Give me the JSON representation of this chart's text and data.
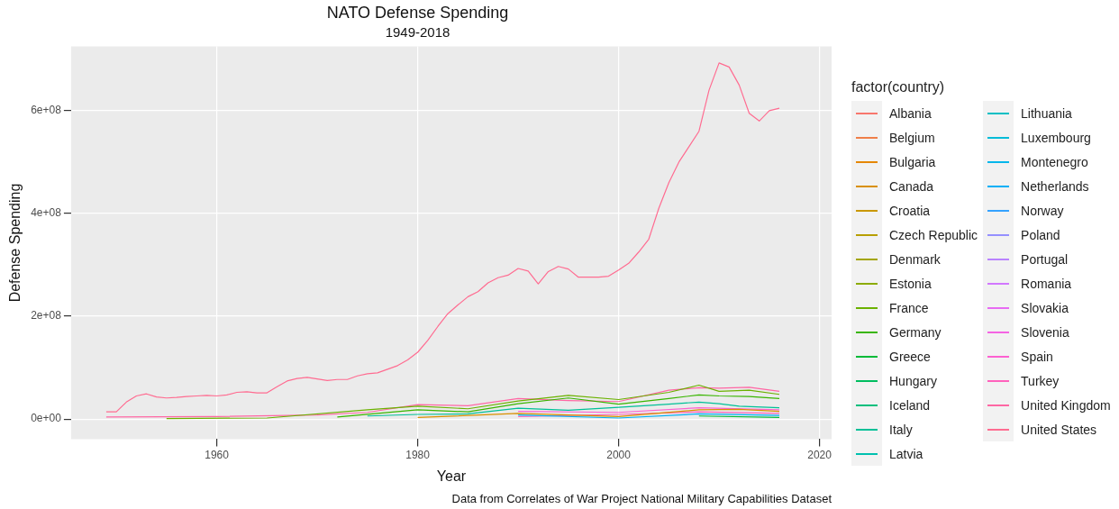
{
  "chart_data": {
    "type": "line",
    "title": "NATO Defense Spending",
    "subtitle": "1949-2018",
    "xlabel": "Year",
    "ylabel": "Defense Spending",
    "legend_title": "factor(country)",
    "legend": "right",
    "grid": true,
    "marker": "none",
    "line_style": "solid",
    "xlim": [
      1945.5,
      2021.2
    ],
    "xticks": [
      1960,
      1980,
      2000,
      2020
    ],
    "ylim": [
      -39000000,
      725000000
    ],
    "yticks": [
      {
        "value": 0,
        "label": "0e+00"
      },
      {
        "value": 200000000,
        "label": "2e+08"
      },
      {
        "value": 400000000,
        "label": "4e+08"
      },
      {
        "value": 600000000,
        "label": "6e+08"
      }
    ],
    "annotations": [
      "Data from Correlates of War Project National Military Capabilities Dataset"
    ],
    "series": [
      {
        "name": "Albania",
        "color": "#f8766d"
      },
      {
        "name": "Belgium",
        "color": "#ef7f49"
      },
      {
        "name": "Bulgaria",
        "color": "#e58700"
      },
      {
        "name": "Canada",
        "color": "#d89000",
        "x": [
          1980,
          1990,
          2000,
          2008,
          2012,
          2016
        ],
        "values": [
          3000000,
          11000000,
          5000000,
          18000000,
          19000000,
          15000000
        ]
      },
      {
        "name": "Croatia",
        "color": "#c99800"
      },
      {
        "name": "Czech Republic",
        "color": "#b79f00"
      },
      {
        "name": "Denmark",
        "color": "#a3a500"
      },
      {
        "name": "Estonia",
        "color": "#8cab00"
      },
      {
        "name": "France",
        "color": "#6bb100",
        "x": [
          1955,
          1965,
          1975,
          1980,
          1985,
          1990,
          1995,
          2000,
          2005,
          2008,
          2010,
          2013,
          2016
        ],
        "values": [
          1000000,
          2000000,
          18000000,
          25000000,
          20000000,
          35000000,
          46000000,
          38000000,
          52000000,
          66000000,
          54000000,
          56000000,
          48000000
        ]
      },
      {
        "name": "Germany",
        "color": "#39b600",
        "x": [
          1972,
          1980,
          1985,
          1990,
          1995,
          2000,
          2005,
          2008,
          2010,
          2013,
          2016
        ],
        "values": [
          4000000,
          18000000,
          14000000,
          30000000,
          41000000,
          29000000,
          40000000,
          47000000,
          45000000,
          44000000,
          40000000
        ]
      },
      {
        "name": "Greece",
        "color": "#00ba38",
        "x": [
          2008,
          2016
        ],
        "values": [
          6000000,
          3000000
        ]
      },
      {
        "name": "Hungary",
        "color": "#00bd5f"
      },
      {
        "name": "Iceland",
        "color": "#00bf7d"
      },
      {
        "name": "Italy",
        "color": "#00c097",
        "x": [
          1975,
          1980,
          1985,
          1990,
          1995,
          2000,
          2005,
          2008,
          2010,
          2012,
          2016
        ],
        "values": [
          6000000,
          9000000,
          10000000,
          21000000,
          17000000,
          23000000,
          29000000,
          33000000,
          30000000,
          25000000,
          22000000
        ]
      },
      {
        "name": "Latvia",
        "color": "#00c0af"
      },
      {
        "name": "Lithuania",
        "color": "#00bfc4"
      },
      {
        "name": "Luxembourg",
        "color": "#00bcd8"
      },
      {
        "name": "Montenegro",
        "color": "#00b6eb"
      },
      {
        "name": "Netherlands",
        "color": "#00b0f6",
        "x": [
          1990,
          2000,
          2008,
          2016
        ],
        "values": [
          8000000,
          2000000,
          10000000,
          7000000
        ]
      },
      {
        "name": "Norway",
        "color": "#35a2ff"
      },
      {
        "name": "Poland",
        "color": "#9590ff"
      },
      {
        "name": "Portugal",
        "color": "#b983ff"
      },
      {
        "name": "Romania",
        "color": "#d277ff"
      },
      {
        "name": "Slovakia",
        "color": "#e76bf3"
      },
      {
        "name": "Slovenia",
        "color": "#f564e3"
      },
      {
        "name": "Spain",
        "color": "#fd61d1",
        "x": [
          1990,
          2000,
          2008,
          2016
        ],
        "values": [
          15000000,
          13000000,
          22000000,
          18000000
        ]
      },
      {
        "name": "Turkey",
        "color": "#ff62bc",
        "x": [
          1990,
          2000,
          2008,
          2016
        ],
        "values": [
          5000000,
          9000000,
          14000000,
          11000000
        ]
      },
      {
        "name": "United Kingdom",
        "color": "#ff67a4",
        "x": [
          1949,
          1960,
          1970,
          1975,
          1980,
          1985,
          1990,
          1995,
          2000,
          2005,
          2008,
          2010,
          2013,
          2016
        ],
        "values": [
          4000000,
          5000000,
          8000000,
          13000000,
          28000000,
          26000000,
          40000000,
          36000000,
          34000000,
          56000000,
          61000000,
          60000000,
          62000000,
          54000000
        ]
      },
      {
        "name": "United States",
        "color": "#ff6c91",
        "x": [
          1949,
          1950,
          1951,
          1952,
          1953,
          1954,
          1955,
          1956,
          1957,
          1958,
          1959,
          1960,
          1961,
          1962,
          1963,
          1964,
          1965,
          1966,
          1967,
          1968,
          1969,
          1970,
          1971,
          1972,
          1973,
          1974,
          1975,
          1976,
          1977,
          1978,
          1979,
          1980,
          1981,
          1982,
          1983,
          1984,
          1985,
          1986,
          1987,
          1988,
          1989,
          1990,
          1991,
          1992,
          1993,
          1994,
          1995,
          1996,
          1997,
          1998,
          1999,
          2000,
          2001,
          2002,
          2003,
          2004,
          2005,
          2006,
          2007,
          2008,
          2009,
          2010,
          2011,
          2012,
          2013,
          2014,
          2015,
          2016
        ],
        "values": [
          14000000,
          14000000,
          33000000,
          45000000,
          49000000,
          43000000,
          41000000,
          42000000,
          44000000,
          45000000,
          46000000,
          45000000,
          47000000,
          52000000,
          53000000,
          51000000,
          51000000,
          63000000,
          74000000,
          79000000,
          81000000,
          78000000,
          75000000,
          77000000,
          77000000,
          84000000,
          88000000,
          90000000,
          97000000,
          104000000,
          115000000,
          130000000,
          153000000,
          180000000,
          205000000,
          222000000,
          238000000,
          248000000,
          265000000,
          275000000,
          280000000,
          293000000,
          288000000,
          263000000,
          287000000,
          297000000,
          292000000,
          276000000,
          276000000,
          276000000,
          278000000,
          290000000,
          303000000,
          325000000,
          350000000,
          410000000,
          460000000,
          500000000,
          530000000,
          560000000,
          640000000,
          693000000,
          685000000,
          650000000,
          595000000,
          580000000,
          600000000,
          605000000
        ]
      }
    ]
  }
}
